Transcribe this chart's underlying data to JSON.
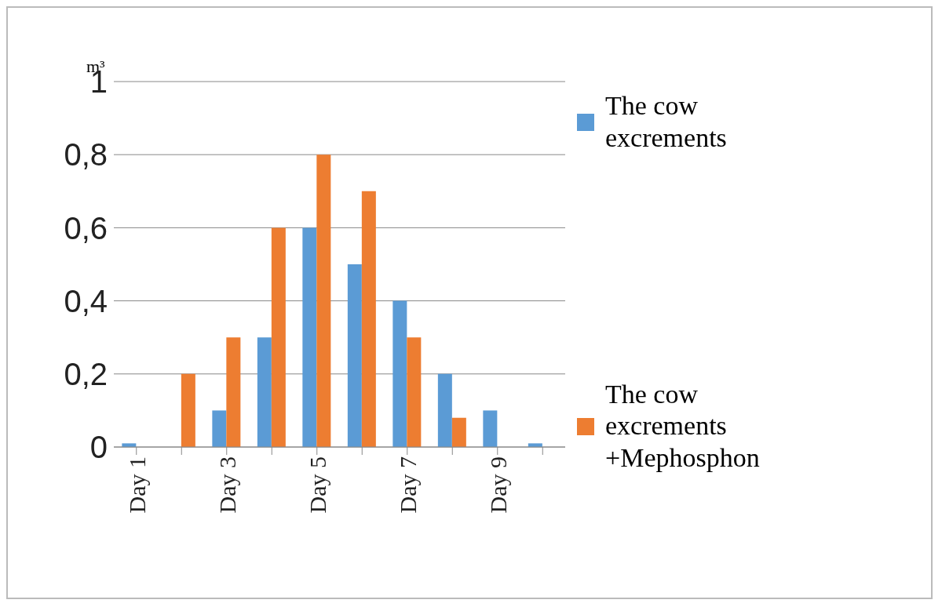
{
  "chart_data": {
    "type": "bar",
    "ylabel": "m³",
    "categories": [
      "Day 1",
      null,
      "Day 3",
      null,
      "Day 5",
      null,
      "Day 7",
      null,
      "Day 9",
      null
    ],
    "series": [
      {
        "name": "The cow excrements",
        "color": "#5b9bd5",
        "values": [
          0.01,
          0,
          0.1,
          0.3,
          0.6,
          0.5,
          0.4,
          0.2,
          0.1,
          0.01
        ]
      },
      {
        "name": "The cow excrements +Mephosphon",
        "color": "#ed7d31",
        "values": [
          0,
          0.2,
          0.3,
          0.6,
          0.8,
          0.7,
          0.3,
          0.08,
          0,
          0
        ]
      }
    ],
    "ylim": [
      0,
      1
    ],
    "yticks": [
      0,
      {
        "value": 0.2,
        "label": "0,2"
      },
      {
        "value": 0.4,
        "label": "0,4"
      },
      {
        "value": 0.6,
        "label": "0,6"
      },
      {
        "value": 0.8,
        "label": "0,8"
      },
      1
    ],
    "grid": "y",
    "legend": "right"
  }
}
